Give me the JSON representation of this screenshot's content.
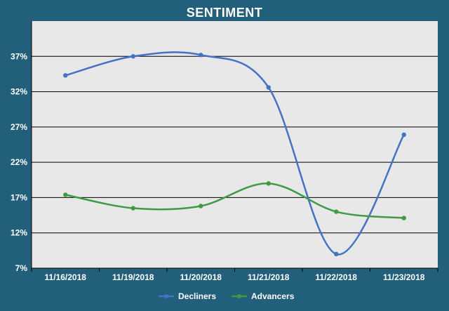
{
  "colors": {
    "background": "#215f7a",
    "plot_background": "#e8e8e8",
    "decliners": "#4472c4",
    "advancers": "#3f9a47"
  },
  "chart_data": {
    "type": "line",
    "title": "SENTIMENT",
    "xlabel": "",
    "ylabel": "",
    "categories": [
      "11/16/2018",
      "11/19/2018",
      "11/20/2018",
      "11/21/2018",
      "11/22/2018",
      "11/23/2018"
    ],
    "ylim": [
      7,
      42
    ],
    "yticks": [
      7,
      12,
      17,
      22,
      27,
      32,
      37
    ],
    "ytick_labels": [
      "7%",
      "12%",
      "17%",
      "22%",
      "27%",
      "32%",
      "37%"
    ],
    "series": [
      {
        "name": "Decliners",
        "values": [
          34.3,
          37.0,
          37.2,
          32.6,
          9.0,
          25.9
        ],
        "color": "#4472c4"
      },
      {
        "name": "Advancers",
        "values": [
          17.4,
          15.5,
          15.8,
          19.0,
          15.0,
          14.1
        ],
        "color": "#3f9a47"
      }
    ],
    "grid": true,
    "smooth": true,
    "legend_position": "bottom"
  }
}
